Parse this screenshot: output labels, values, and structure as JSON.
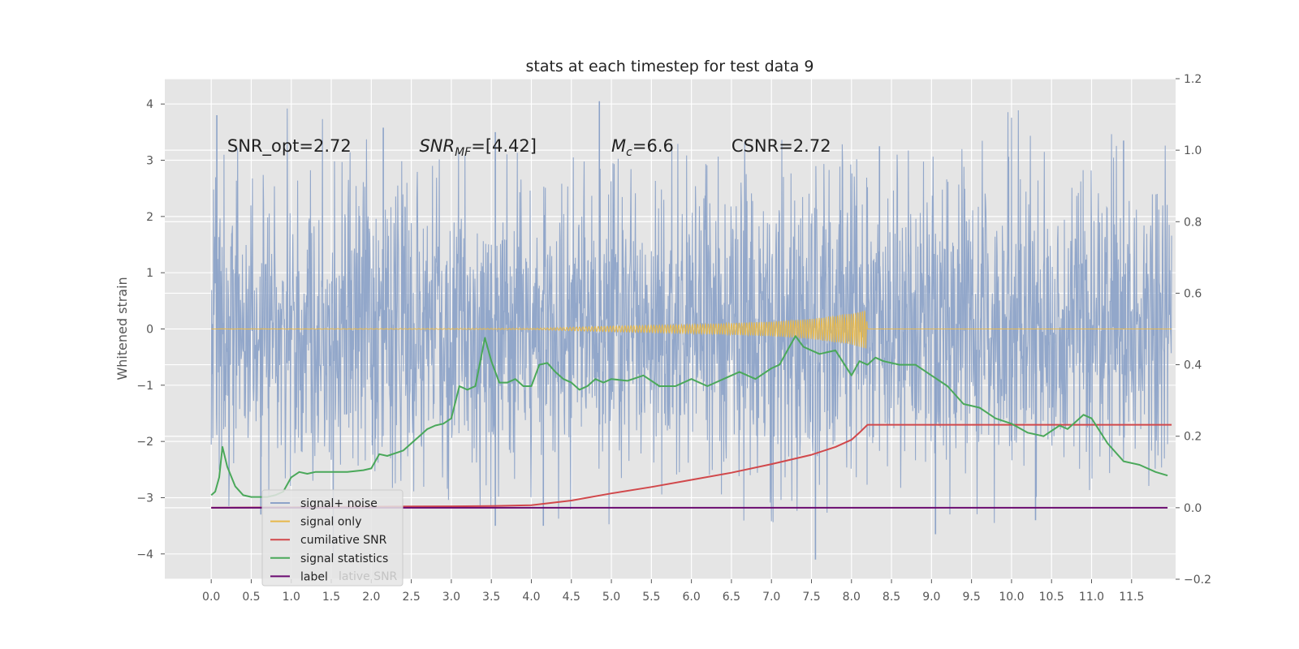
{
  "chart_data": {
    "type": "line",
    "title": "stats at each timestep for test data 9",
    "ylabel": "Whitened strain",
    "xlabel": "",
    "y2label": "",
    "xlim": [
      -0.58,
      12.05
    ],
    "ylim": [
      -4.45,
      4.45
    ],
    "y2lim": [
      -0.2,
      1.2
    ],
    "x_ticks": [
      0.0,
      0.5,
      1.0,
      1.5,
      2.0,
      2.5,
      3.0,
      3.5,
      4.0,
      4.5,
      5.0,
      5.5,
      6.0,
      6.5,
      7.0,
      7.5,
      8.0,
      8.5,
      9.0,
      9.5,
      10.0,
      10.5,
      11.0,
      11.5
    ],
    "x_tick_labels": [
      "0.0",
      "0.5",
      "1.0",
      "1.5",
      "2.0",
      "2.5",
      "3.0",
      "3.5",
      "4.0",
      "4.5",
      "5.0",
      "5.5",
      "6.0",
      "6.5",
      "7.0",
      "7.5",
      "8.0",
      "8.5",
      "9.0",
      "9.5",
      "10.0",
      "10.5",
      "11.0",
      "11.5"
    ],
    "y_ticks": [
      -4,
      -3,
      -2,
      -1,
      0,
      1,
      2,
      3,
      4
    ],
    "y_tick_labels": [
      "−4",
      "−3",
      "−2",
      "−1",
      "0",
      "1",
      "2",
      "3",
      "4"
    ],
    "y2_ticks": [
      -0.2,
      0.0,
      0.2,
      0.4,
      0.6,
      0.8,
      1.0,
      1.2
    ],
    "y2_tick_labels": [
      "−0.2",
      "0.0",
      "0.2",
      "0.4",
      "0.6",
      "0.8",
      "1.0",
      "1.2"
    ],
    "grid": true,
    "legend_position": "lower-left",
    "annotations": [
      {
        "text": "SNR_opt=2.72",
        "x": 0.2,
        "y": 3.25
      },
      {
        "text": "SNR_MF=[4.42]",
        "x": 2.6,
        "y": 3.25
      },
      {
        "text": "M_c=6.6",
        "x": 5.0,
        "y": 3.25
      },
      {
        "text": "CSNR=2.72",
        "x": 6.5,
        "y": 3.25
      }
    ],
    "series": [
      {
        "name": "signal+ noise",
        "axis": "left",
        "color": "#8da3c8",
        "kind": "noise",
        "x_range": [
          0.0,
          12.0
        ],
        "envelope_typical": [
          -1.9,
          1.9
        ],
        "peaks": [
          {
            "x": 0.07,
            "y": 3.8
          },
          {
            "x": 2.15,
            "y": 3.58
          },
          {
            "x": 4.85,
            "y": 4.05
          },
          {
            "x": 3.55,
            "y": 3.5
          },
          {
            "x": 8.35,
            "y": 3.25
          },
          {
            "x": 11.4,
            "y": 3.35
          },
          {
            "x": 7.55,
            "y": -4.1
          },
          {
            "x": 9.05,
            "y": -3.65
          },
          {
            "x": 3.55,
            "y": -3.5
          },
          {
            "x": 4.15,
            "y": -3.5
          },
          {
            "x": 10.3,
            "y": -3.4
          },
          {
            "x": 0.62,
            "y": -3.3
          }
        ]
      },
      {
        "name": "signal only",
        "axis": "left",
        "color": "#e8b84a",
        "kind": "chirp",
        "x": [
          0.0,
          4.0,
          5.0,
          6.0,
          7.0,
          7.5,
          8.0,
          8.18,
          8.2,
          12.0
        ],
        "amplitude": [
          0.0,
          0.01,
          0.05,
          0.08,
          0.13,
          0.18,
          0.28,
          0.35,
          0.0,
          0.0
        ]
      },
      {
        "name": "cumilative SNR",
        "axis": "right",
        "color": "#d1484b",
        "x": [
          0.0,
          1.0,
          2.0,
          3.0,
          3.5,
          4.0,
          4.5,
          5.0,
          5.5,
          6.0,
          6.5,
          7.0,
          7.5,
          7.8,
          8.0,
          8.1,
          8.2,
          9.0,
          10.0,
          11.0,
          12.0
        ],
        "values": [
          0.0,
          0.001,
          0.003,
          0.004,
          0.005,
          0.007,
          0.02,
          0.04,
          0.058,
          0.078,
          0.098,
          0.122,
          0.148,
          0.17,
          0.19,
          0.21,
          0.232,
          0.232,
          0.232,
          0.232,
          0.232
        ]
      },
      {
        "name": "signal statistics",
        "axis": "right",
        "color": "#4aa85a",
        "x": [
          0.0,
          0.05,
          0.1,
          0.14,
          0.2,
          0.3,
          0.4,
          0.5,
          0.6,
          0.7,
          0.8,
          0.9,
          1.0,
          1.1,
          1.2,
          1.3,
          1.5,
          1.7,
          1.9,
          2.0,
          2.1,
          2.2,
          2.4,
          2.5,
          2.6,
          2.7,
          2.8,
          2.9,
          3.0,
          3.1,
          3.2,
          3.3,
          3.42,
          3.5,
          3.6,
          3.7,
          3.8,
          3.9,
          4.0,
          4.1,
          4.2,
          4.3,
          4.4,
          4.5,
          4.6,
          4.7,
          4.8,
          4.9,
          5.0,
          5.2,
          5.4,
          5.6,
          5.8,
          6.0,
          6.2,
          6.4,
          6.6,
          6.8,
          7.0,
          7.1,
          7.2,
          7.3,
          7.4,
          7.5,
          7.6,
          7.8,
          8.0,
          8.1,
          8.2,
          8.3,
          8.4,
          8.6,
          8.8,
          9.0,
          9.2,
          9.4,
          9.6,
          9.8,
          10.0,
          10.2,
          10.4,
          10.6,
          10.7,
          10.8,
          10.9,
          11.0,
          11.2,
          11.4,
          11.6,
          11.8,
          11.95
        ],
        "values": [
          0.035,
          0.045,
          0.085,
          0.17,
          0.115,
          0.06,
          0.035,
          0.03,
          0.03,
          0.03,
          0.035,
          0.045,
          0.085,
          0.1,
          0.095,
          0.1,
          0.1,
          0.1,
          0.105,
          0.11,
          0.15,
          0.145,
          0.16,
          0.18,
          0.2,
          0.22,
          0.23,
          0.235,
          0.25,
          0.34,
          0.33,
          0.34,
          0.475,
          0.41,
          0.35,
          0.35,
          0.36,
          0.34,
          0.34,
          0.4,
          0.405,
          0.38,
          0.36,
          0.35,
          0.33,
          0.34,
          0.36,
          0.35,
          0.36,
          0.355,
          0.37,
          0.34,
          0.34,
          0.36,
          0.34,
          0.36,
          0.38,
          0.36,
          0.39,
          0.4,
          0.44,
          0.48,
          0.45,
          0.44,
          0.43,
          0.44,
          0.37,
          0.41,
          0.4,
          0.42,
          0.41,
          0.4,
          0.4,
          0.37,
          0.34,
          0.29,
          0.28,
          0.25,
          0.235,
          0.21,
          0.2,
          0.23,
          0.22,
          0.24,
          0.26,
          0.25,
          0.18,
          0.13,
          0.12,
          0.1,
          0.09
        ]
      },
      {
        "name": "label",
        "axis": "right",
        "color": "#6a0a70",
        "x": [
          0.0,
          11.95
        ],
        "values": [
          0.0,
          0.0
        ]
      }
    ],
    "legend": [
      {
        "label": "signal+ noise",
        "color": "#8da3c8"
      },
      {
        "label": "signal only",
        "color": "#e8b84a"
      },
      {
        "label": "cumilative SNR",
        "color": "#d1484b"
      },
      {
        "label": "signal statistics",
        "color": "#4aa85a"
      },
      {
        "label": "label",
        "color": "#6a0a70"
      }
    ],
    "legend_ghost_text": "lative SNR",
    "colors": {
      "plot_background": "#e5e5e5",
      "grid": "#ffffff"
    }
  }
}
